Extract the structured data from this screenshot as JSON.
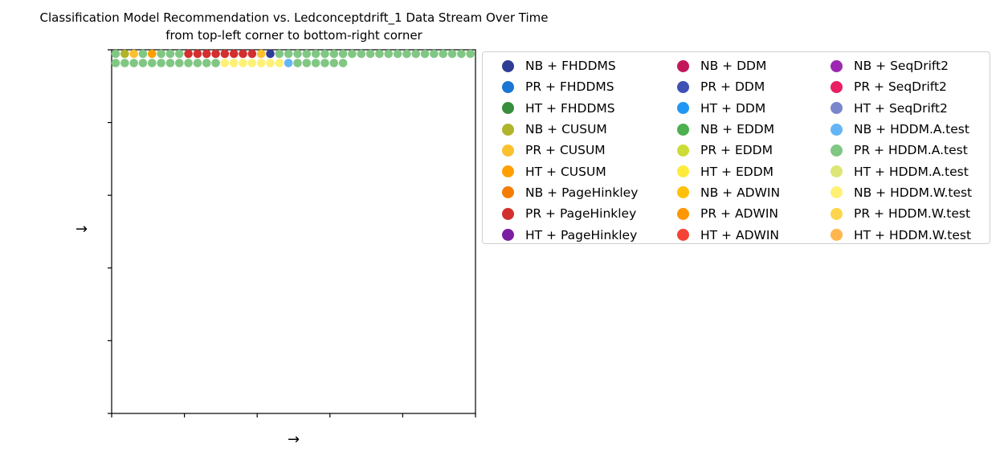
{
  "chart_data": {
    "type": "scatter",
    "title": "Classification Model Recommendation vs. Ledconceptdrift_1 Data Stream Over Time",
    "subtitle": "from top-left corner to bottom-right corner",
    "xlabel": "→",
    "ylabel": "→",
    "grid_columns": 40,
    "rows": [
      [
        "PR + HDDM.A.test",
        "NB + CUSUM",
        "PR + CUSUM",
        "PR + HDDM.A.test",
        "HT + CUSUM",
        "PR + HDDM.A.test",
        "PR + HDDM.A.test",
        "PR + HDDM.A.test",
        "PR + PageHinkley",
        "PR + PageHinkley",
        "PR + PageHinkley",
        "PR + PageHinkley",
        "PR + PageHinkley",
        "PR + PageHinkley",
        "PR + PageHinkley",
        "PR + PageHinkley",
        "PR + CUSUM",
        "NB + FHDDMS",
        "PR + HDDM.A.test",
        "PR + HDDM.A.test",
        "PR + HDDM.A.test",
        "PR + HDDM.A.test",
        "PR + HDDM.A.test",
        "PR + HDDM.A.test",
        "PR + HDDM.A.test",
        "PR + HDDM.A.test",
        "PR + HDDM.A.test",
        "PR + HDDM.A.test",
        "PR + HDDM.A.test",
        "PR + HDDM.A.test",
        "PR + HDDM.A.test",
        "PR + HDDM.A.test",
        "PR + HDDM.A.test",
        "PR + HDDM.A.test",
        "PR + HDDM.A.test",
        "PR + HDDM.A.test",
        "PR + HDDM.A.test",
        "PR + HDDM.A.test",
        "PR + HDDM.A.test",
        "PR + HDDM.A.test"
      ],
      [
        "PR + HDDM.A.test",
        "PR + HDDM.A.test",
        "PR + HDDM.A.test",
        "PR + HDDM.A.test",
        "PR + HDDM.A.test",
        "PR + HDDM.A.test",
        "PR + HDDM.A.test",
        "PR + HDDM.A.test",
        "PR + HDDM.A.test",
        "PR + HDDM.A.test",
        "PR + HDDM.A.test",
        "PR + HDDM.A.test",
        "NB + HDDM.W.test",
        "NB + HDDM.W.test",
        "NB + HDDM.W.test",
        "NB + HDDM.W.test",
        "NB + HDDM.W.test",
        "NB + HDDM.W.test",
        "NB + HDDM.W.test",
        "NB + HDDM.A.test",
        "PR + HDDM.A.test",
        "PR + HDDM.A.test",
        "PR + HDDM.A.test",
        "PR + HDDM.A.test",
        "PR + HDDM.A.test",
        "PR + HDDM.A.test"
      ]
    ],
    "legend": [
      {
        "name": "NB + FHDDMS",
        "color": "#2e3d96"
      },
      {
        "name": "PR + FHDDMS",
        "color": "#1976d2"
      },
      {
        "name": "HT + FHDDMS",
        "color": "#388e3c"
      },
      {
        "name": "NB + CUSUM",
        "color": "#afb42b"
      },
      {
        "name": "PR + CUSUM",
        "color": "#fbc02d"
      },
      {
        "name": "HT + CUSUM",
        "color": "#ffa000"
      },
      {
        "name": "NB + PageHinkley",
        "color": "#f57c00"
      },
      {
        "name": "PR + PageHinkley",
        "color": "#d32f2f"
      },
      {
        "name": "HT + PageHinkley",
        "color": "#7b1fa2"
      },
      {
        "name": "NB + DDM",
        "color": "#c2185b"
      },
      {
        "name": "PR + DDM",
        "color": "#3f51b5"
      },
      {
        "name": "HT + DDM",
        "color": "#2196f3"
      },
      {
        "name": "NB + EDDM",
        "color": "#4caf50"
      },
      {
        "name": "PR + EDDM",
        "color": "#cddc39"
      },
      {
        "name": "HT + EDDM",
        "color": "#ffeb3b"
      },
      {
        "name": "NB + ADWIN",
        "color": "#ffc107"
      },
      {
        "name": "PR + ADWIN",
        "color": "#ff9800"
      },
      {
        "name": "HT + ADWIN",
        "color": "#f44336"
      },
      {
        "name": "NB + SeqDrift2",
        "color": "#9c27b0"
      },
      {
        "name": "PR + SeqDrift2",
        "color": "#e91e63"
      },
      {
        "name": "HT + SeqDrift2",
        "color": "#7986cb"
      },
      {
        "name": "NB + HDDM.A.test",
        "color": "#64b5f6"
      },
      {
        "name": "PR + HDDM.A.test",
        "color": "#81c784"
      },
      {
        "name": "HT + HDDM.A.test",
        "color": "#dce775"
      },
      {
        "name": "NB + HDDM.W.test",
        "color": "#fff176"
      },
      {
        "name": "PR + HDDM.W.test",
        "color": "#ffd54f"
      },
      {
        "name": "HT + HDDM.W.test",
        "color": "#ffb74d"
      }
    ],
    "legend_columns": 3,
    "legend_placement": "right",
    "grid": false
  }
}
